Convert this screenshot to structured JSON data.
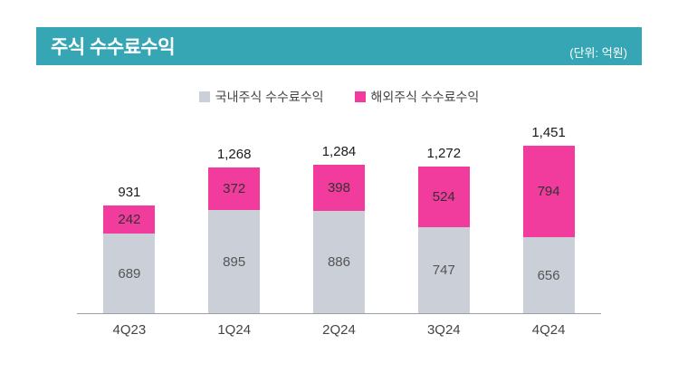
{
  "header": {
    "title": "주식 수수료수익",
    "unit": "(단위: 억원)"
  },
  "colors": {
    "header_bg": "#36a6b4",
    "domestic": "#cbcfd8",
    "overseas": "#f13b9d",
    "axis": "#9aa0a8"
  },
  "legend": [
    {
      "label": "국내주식 수수료수익",
      "color": "#cbcfd8"
    },
    {
      "label": "해외주식 수수료수익",
      "color": "#f13b9d"
    }
  ],
  "chart_data": {
    "type": "bar",
    "stacked": true,
    "title": "주식 수수료수익",
    "unit": "억원",
    "categories": [
      "4Q23",
      "1Q24",
      "2Q24",
      "3Q24",
      "4Q24"
    ],
    "series": [
      {
        "name": "국내주식 수수료수익",
        "color": "#cbcfd8",
        "label_color": "#555555",
        "values": [
          689,
          895,
          886,
          747,
          656
        ]
      },
      {
        "name": "해외주식 수수료수익",
        "color": "#f13b9d",
        "label_color": "#333333",
        "values": [
          242,
          372,
          398,
          524,
          794
        ]
      }
    ],
    "totals": [
      "931",
      "1,268",
      "1,284",
      "1,272",
      "1,451"
    ],
    "ylim": [
      0,
      1550
    ],
    "legend_position": "top",
    "grid": false
  }
}
